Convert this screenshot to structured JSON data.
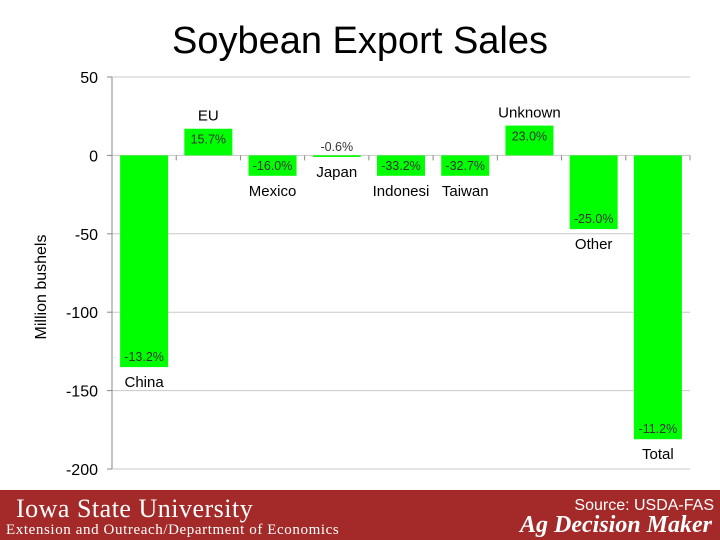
{
  "slide": {
    "title": "Soybean Export Sales"
  },
  "footer": {
    "university": "Iowa State University",
    "department": "Extension and Outreach/Department of Economics",
    "source": "Source: USDA-FAS",
    "brand": "Ag Decision Maker",
    "background_color": "#a32a28"
  },
  "chart_data": {
    "type": "bar",
    "title": "Soybean Export Sales",
    "ylabel": "Million bushels",
    "xlabel": "",
    "ylim": [
      -200,
      50
    ],
    "yticks": [
      50,
      0,
      -50,
      -100,
      -150,
      -200
    ],
    "grid": true,
    "bar_color": "#00ff00",
    "categories": [
      "China",
      "EU",
      "Mexico",
      "Japan",
      "Indonesi",
      "Taiwan",
      "Unknown",
      "Other",
      "Total"
    ],
    "values": [
      -135,
      17,
      -13,
      -1,
      -13,
      -13,
      19,
      -47,
      -181
    ],
    "data_labels": [
      "-13.2%",
      "15.7%",
      "-16.0%",
      "-0.6%",
      "-33.2%",
      "-32.7%",
      "23.0%",
      "-25.0%",
      "-11.2%"
    ]
  }
}
